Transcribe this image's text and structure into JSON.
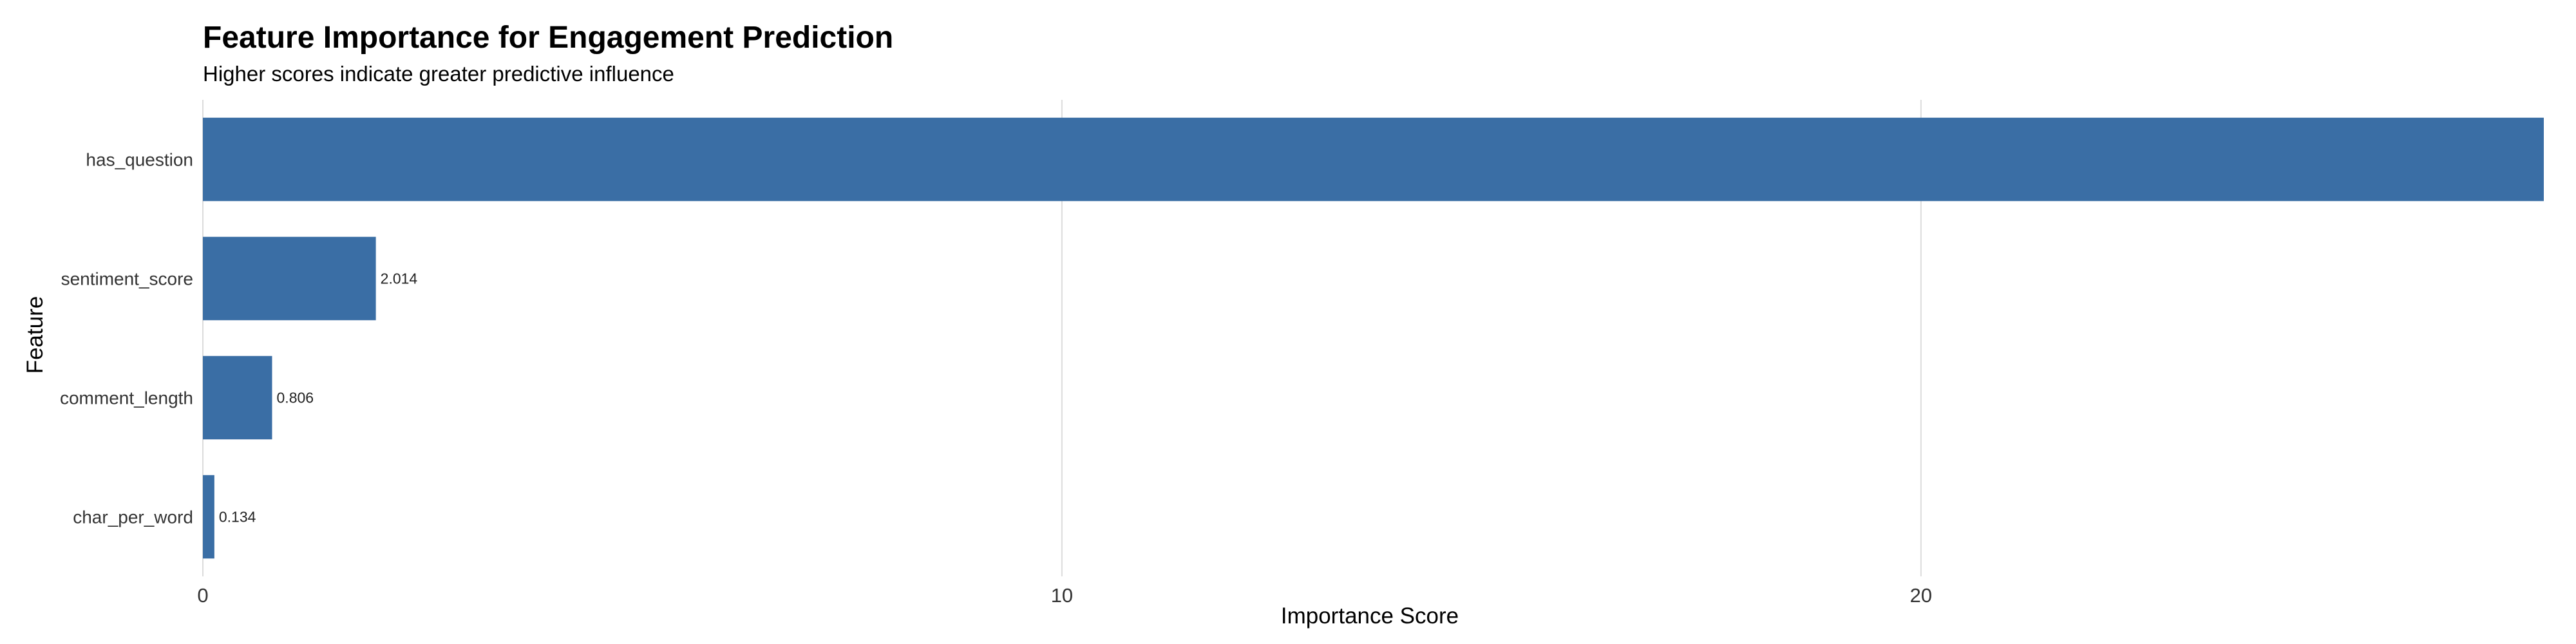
{
  "chart_data": {
    "type": "bar",
    "orientation": "horizontal",
    "title": "Feature Importance for Engagement Prediction",
    "subtitle": "Higher scores indicate greater predictive influence",
    "xlabel": "Importance Score",
    "ylabel": "Feature",
    "categories": [
      "has_question",
      "sentiment_score",
      "comment_length",
      "char_per_word"
    ],
    "values": [
      27.25,
      2.014,
      0.806,
      0.134
    ],
    "data_labels": [
      "",
      "2.014",
      "0.806",
      "0.134"
    ],
    "x_ticks": [
      "0",
      "10",
      "20"
    ],
    "x_tick_values": [
      0,
      10,
      20
    ],
    "xlim": [
      0,
      27.25
    ],
    "bar_color": "#3a6ea5",
    "grid": "vertical-major",
    "legend": "none"
  }
}
